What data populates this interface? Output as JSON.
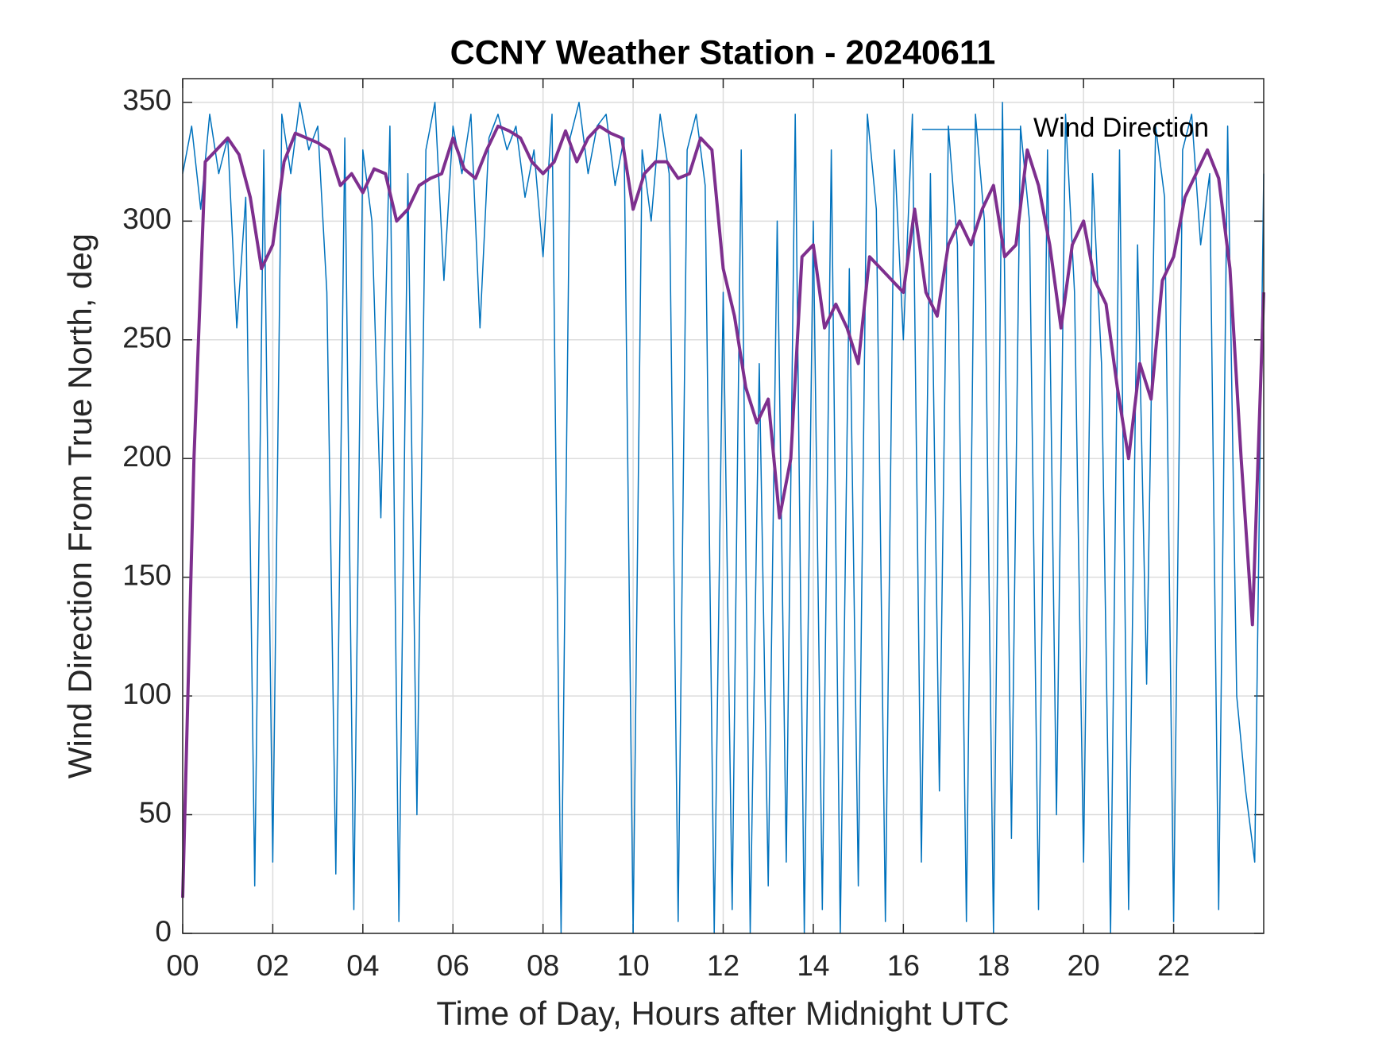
{
  "chart_data": {
    "type": "line",
    "title": "CCNY Weather Station - 20240611",
    "xlabel": "Time of Day, Hours after Midnight UTC",
    "ylabel": "Wind Direction From True North, deg",
    "xlim": [
      0,
      24
    ],
    "ylim": [
      0,
      360
    ],
    "xticks": [
      {
        "value": 0,
        "label": "00"
      },
      {
        "value": 2,
        "label": "02"
      },
      {
        "value": 4,
        "label": "04"
      },
      {
        "value": 6,
        "label": "06"
      },
      {
        "value": 8,
        "label": "08"
      },
      {
        "value": 10,
        "label": "10"
      },
      {
        "value": 12,
        "label": "12"
      },
      {
        "value": 14,
        "label": "14"
      },
      {
        "value": 16,
        "label": "16"
      },
      {
        "value": 18,
        "label": "18"
      },
      {
        "value": 20,
        "label": "20"
      },
      {
        "value": 22,
        "label": "22"
      }
    ],
    "yticks": [
      0,
      50,
      100,
      150,
      200,
      250,
      300,
      350
    ],
    "grid": true,
    "legend": "northeast",
    "series": [
      {
        "name": "Wind Direction",
        "color": "#0072bd",
        "width": 1.5,
        "x": [
          0,
          0.2,
          0.4,
          0.6,
          0.8,
          1,
          1.2,
          1.4,
          1.6,
          1.8,
          2,
          2.2,
          2.4,
          2.6,
          2.8,
          3,
          3.2,
          3.4,
          3.6,
          3.8,
          4,
          4.2,
          4.4,
          4.6,
          4.8,
          5,
          5.2,
          5.4,
          5.6,
          5.8,
          6,
          6.2,
          6.4,
          6.6,
          6.8,
          7,
          7.2,
          7.4,
          7.6,
          7.8,
          8,
          8.2,
          8.4,
          8.6,
          8.8,
          9,
          9.2,
          9.4,
          9.6,
          9.8,
          10,
          10.2,
          10.4,
          10.6,
          10.8,
          11,
          11.2,
          11.4,
          11.6,
          11.8,
          12,
          12.2,
          12.4,
          12.6,
          12.8,
          13,
          13.2,
          13.4,
          13.6,
          13.8,
          14,
          14.2,
          14.4,
          14.6,
          14.8,
          15,
          15.2,
          15.4,
          15.6,
          15.8,
          16,
          16.2,
          16.4,
          16.6,
          16.8,
          17,
          17.2,
          17.4,
          17.6,
          17.8,
          18,
          18.2,
          18.4,
          18.6,
          18.8,
          19,
          19.2,
          19.4,
          19.6,
          19.8,
          20,
          20.2,
          20.4,
          20.6,
          20.8,
          21,
          21.2,
          21.4,
          21.6,
          21.8,
          22,
          22.2,
          22.4,
          22.6,
          22.8,
          23,
          23.2,
          23.4,
          23.6,
          23.8,
          24
        ],
        "values": [
          320,
          340,
          305,
          345,
          320,
          335,
          255,
          310,
          20,
          330,
          30,
          345,
          320,
          350,
          330,
          340,
          270,
          25,
          335,
          10,
          330,
          300,
          175,
          340,
          5,
          320,
          50,
          330,
          350,
          275,
          340,
          320,
          345,
          255,
          335,
          345,
          330,
          340,
          310,
          330,
          285,
          345,
          0,
          335,
          350,
          320,
          340,
          345,
          315,
          335,
          0,
          330,
          300,
          345,
          320,
          5,
          330,
          345,
          315,
          0,
          270,
          10,
          330,
          0,
          240,
          20,
          300,
          30,
          345,
          0,
          300,
          10,
          330,
          0,
          280,
          20,
          345,
          305,
          5,
          330,
          250,
          345,
          30,
          320,
          60,
          340,
          290,
          5,
          345,
          300,
          0,
          350,
          40,
          340,
          300,
          10,
          330,
          50,
          345,
          270,
          30,
          320,
          240,
          0,
          330,
          10,
          290,
          105,
          340,
          310,
          5,
          330,
          345,
          290,
          320,
          10,
          340,
          100,
          60,
          30,
          320
        ]
      },
      {
        "color": "#7e2f8e",
        "width": 4,
        "x": [
          0,
          0.25,
          0.5,
          0.75,
          1,
          1.25,
          1.5,
          1.75,
          2,
          2.25,
          2.5,
          2.75,
          3,
          3.25,
          3.5,
          3.75,
          4,
          4.25,
          4.5,
          4.75,
          5,
          5.25,
          5.5,
          5.75,
          6,
          6.25,
          6.5,
          6.75,
          7,
          7.25,
          7.5,
          7.75,
          8,
          8.25,
          8.5,
          8.75,
          9,
          9.25,
          9.5,
          9.75,
          10,
          10.25,
          10.5,
          10.75,
          11,
          11.25,
          11.5,
          11.75,
          12,
          12.25,
          12.5,
          12.75,
          13,
          13.25,
          13.5,
          13.75,
          14,
          14.25,
          14.5,
          14.75,
          15,
          15.25,
          15.5,
          15.75,
          16,
          16.25,
          16.5,
          16.75,
          17,
          17.25,
          17.5,
          17.75,
          18,
          18.25,
          18.5,
          18.75,
          19,
          19.25,
          19.5,
          19.75,
          20,
          20.25,
          20.5,
          20.75,
          21,
          21.25,
          21.5,
          21.75,
          22,
          22.25,
          22.5,
          22.75,
          23,
          23.25,
          23.5,
          23.75,
          24
        ],
        "values": [
          15,
          200,
          325,
          330,
          335,
          328,
          310,
          280,
          290,
          325,
          337,
          335,
          333,
          330,
          315,
          320,
          312,
          322,
          320,
          300,
          305,
          315,
          318,
          320,
          335,
          322,
          318,
          330,
          340,
          338,
          335,
          325,
          320,
          325,
          338,
          325,
          335,
          340,
          337,
          335,
          305,
          320,
          325,
          325,
          318,
          320,
          335,
          330,
          280,
          260,
          230,
          215,
          225,
          175,
          200,
          285,
          290,
          255,
          265,
          255,
          240,
          285,
          280,
          275,
          270,
          305,
          270,
          260,
          290,
          300,
          290,
          305,
          315,
          285,
          290,
          330,
          315,
          290,
          255,
          290,
          300,
          275,
          265,
          230,
          200,
          240,
          225,
          275,
          285,
          310,
          320,
          330,
          318,
          280,
          200,
          130,
          270
        ]
      }
    ]
  }
}
